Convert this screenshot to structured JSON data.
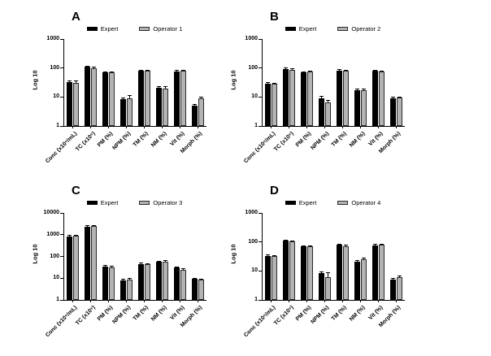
{
  "page": {
    "background": "#ffffff"
  },
  "colors": {
    "expert_bar": "#000000",
    "operator_bar": "#b3b3b3",
    "axis": "#000000"
  },
  "chart_data": [
    {
      "panel_label": "A",
      "type": "bar",
      "yscale": "log",
      "ylabel": "Log 10",
      "ylim": [
        1,
        1000
      ],
      "yticks": [
        "1",
        "10",
        "100",
        "1000"
      ],
      "grid": false,
      "legend_position": "top",
      "categories": [
        "Conc (x10⁶/mL)",
        "TC (x10⁶)",
        "PM (%)",
        "NPM (%)",
        "TM (%)",
        "NM (%)",
        "Vit (%)",
        "Morph (%)"
      ],
      "series": [
        {
          "name": "Expert",
          "color": "#000000",
          "values": [
            33,
            110,
            70,
            8.5,
            80,
            21,
            78,
            5
          ],
          "errors": [
            3,
            6,
            4,
            1,
            4,
            2.5,
            4,
            0.4
          ]
        },
        {
          "name": "Operator 1",
          "color": "#b3b3b3",
          "values": [
            31,
            100,
            70,
            9,
            80,
            20,
            80,
            9
          ],
          "errors": [
            4,
            6,
            4,
            2.5,
            4,
            2.5,
            4,
            0.7
          ]
        }
      ]
    },
    {
      "panel_label": "B",
      "type": "bar",
      "yscale": "log",
      "ylabel": "Log 10",
      "ylim": [
        1,
        1000
      ],
      "yticks": [
        "1",
        "10",
        "100",
        "1000"
      ],
      "grid": false,
      "legend_position": "top",
      "categories": [
        "Conc (x10⁶/mL)",
        "TC (x10⁶)",
        "PM (%)",
        "NPM (%)",
        "TM (%)",
        "NM (%)",
        "Vit (%)",
        "Morph (%)"
      ],
      "series": [
        {
          "name": "Expert",
          "color": "#000000",
          "values": [
            29,
            93,
            72,
            9,
            83,
            17,
            79,
            9
          ],
          "errors": [
            2,
            5,
            3,
            1.5,
            4,
            2,
            3,
            0.8
          ]
        },
        {
          "name": "Operator 2",
          "color": "#b3b3b3",
          "values": [
            28,
            87,
            77,
            6.5,
            81,
            17,
            77,
            9.5
          ],
          "errors": [
            2,
            5,
            3,
            1,
            4,
            2,
            3,
            0.7
          ]
        }
      ]
    },
    {
      "panel_label": "C",
      "type": "bar",
      "yscale": "log",
      "ylabel": "Log 10",
      "ylim": [
        1,
        10000
      ],
      "yticks": [
        "1",
        "10",
        "100",
        "1000",
        "10000"
      ],
      "grid": false,
      "legend_position": "top",
      "categories": [
        "Conc (x10⁶/mL)",
        "TC (x10⁶)",
        "PM (%)",
        "NPM (%)",
        "TM (%)",
        "NM (%)",
        "Vit (%)",
        "Morph (%)"
      ],
      "series": [
        {
          "name": "Expert",
          "color": "#000000",
          "values": [
            850,
            2400,
            35,
            8,
            45,
            57,
            30,
            9
          ],
          "errors": [
            70,
            200,
            5,
            0.8,
            5,
            5,
            3,
            1
          ]
        },
        {
          "name": "Operator 3",
          "color": "#b3b3b3",
          "values": [
            900,
            2500,
            30,
            8.7,
            43,
            58,
            24,
            8.5
          ],
          "errors": [
            70,
            200,
            6,
            1,
            5,
            5,
            2.5,
            0.8
          ]
        }
      ]
    },
    {
      "panel_label": "D",
      "type": "bar",
      "yscale": "log",
      "ylabel": "Log 10",
      "ylim": [
        1,
        1000
      ],
      "yticks": [
        "1",
        "10",
        "100",
        "1000"
      ],
      "grid": false,
      "legend_position": "top",
      "categories": [
        "Conc (x10⁶/mL)",
        "TC (x10⁶)",
        "PM (%)",
        "NPM (%)",
        "TM (%)",
        "NM (%)",
        "Vit (%)",
        "Morph (%)"
      ],
      "series": [
        {
          "name": "Expert",
          "color": "#000000",
          "values": [
            33,
            110,
            70,
            8.5,
            80,
            21,
            78,
            5
          ],
          "errors": [
            2,
            5,
            3,
            0.7,
            3,
            2,
            3,
            0.4
          ]
        },
        {
          "name": "Operator 4",
          "color": "#b3b3b3",
          "values": [
            32,
            105,
            70,
            6,
            73,
            26,
            80,
            6.2
          ],
          "errors": [
            2,
            5,
            3,
            2.5,
            3,
            2,
            3,
            0.7
          ]
        }
      ]
    }
  ]
}
